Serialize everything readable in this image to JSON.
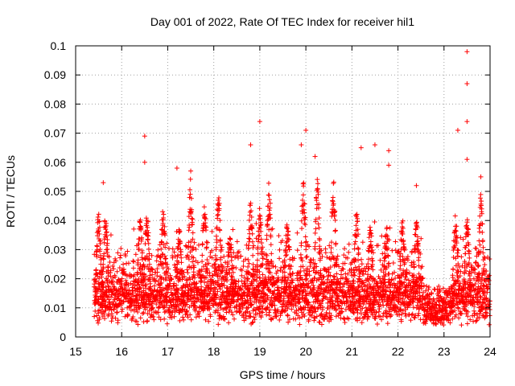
{
  "chart_data": {
    "type": "scatter",
    "title": "Day 001 of 2022, Rate Of TEC Index for receiver hil1",
    "xlabel": "GPS time / hours",
    "ylabel": "ROTI / TECUs",
    "xlim": [
      15,
      24
    ],
    "ylim": [
      0,
      0.1
    ],
    "xticks": [
      15,
      16,
      17,
      18,
      19,
      20,
      21,
      22,
      23,
      24
    ],
    "yticks": [
      0,
      0.01,
      0.02,
      0.03,
      0.04,
      0.05,
      0.06,
      0.07,
      0.08,
      0.09,
      0.1
    ],
    "xtick_labels": [
      "15",
      "16",
      "17",
      "18",
      "19",
      "20",
      "21",
      "22",
      "23",
      "24"
    ],
    "ytick_labels": [
      "0",
      "0.01",
      "0.02",
      "0.03",
      "0.04",
      "0.05",
      "0.06",
      "0.07",
      "0.08",
      "0.09",
      "0.1"
    ],
    "grid": true,
    "marker": "+",
    "series_color": "#ff0000",
    "series": [
      {
        "name": "ROTI",
        "x_range": [
          15.4,
          24
        ],
        "typical_range": [
          0.004,
          0.035
        ],
        "notable_points": [
          {
            "x": 15.6,
            "y": 0.053
          },
          {
            "x": 16.5,
            "y": 0.069
          },
          {
            "x": 16.5,
            "y": 0.06
          },
          {
            "x": 17.2,
            "y": 0.058
          },
          {
            "x": 17.5,
            "y": 0.057
          },
          {
            "x": 18.8,
            "y": 0.066
          },
          {
            "x": 19.0,
            "y": 0.074
          },
          {
            "x": 19.9,
            "y": 0.066
          },
          {
            "x": 20.0,
            "y": 0.071
          },
          {
            "x": 20.2,
            "y": 0.062
          },
          {
            "x": 21.2,
            "y": 0.065
          },
          {
            "x": 21.5,
            "y": 0.066
          },
          {
            "x": 21.8,
            "y": 0.064
          },
          {
            "x": 21.8,
            "y": 0.059
          },
          {
            "x": 22.4,
            "y": 0.052
          },
          {
            "x": 23.3,
            "y": 0.071
          },
          {
            "x": 23.5,
            "y": 0.098
          },
          {
            "x": 23.5,
            "y": 0.087
          },
          {
            "x": 23.5,
            "y": 0.074
          },
          {
            "x": 23.5,
            "y": 0.061
          },
          {
            "x": 23.8,
            "y": 0.055
          }
        ]
      }
    ]
  }
}
